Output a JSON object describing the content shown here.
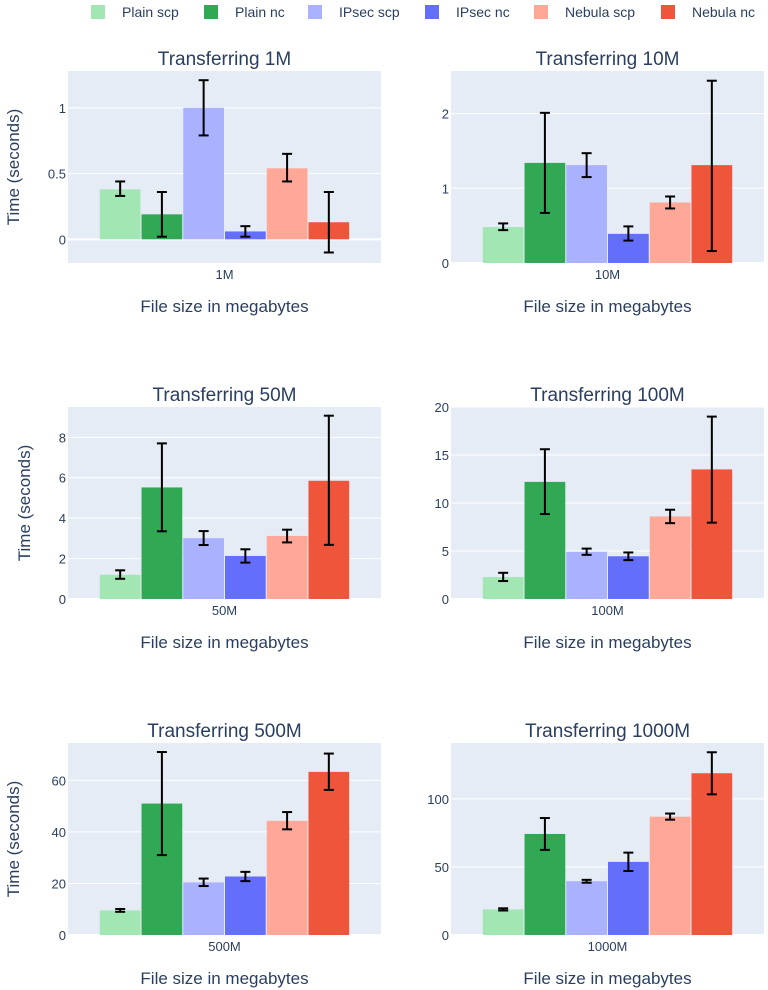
{
  "legend": {
    "entries": [
      {
        "name": "Plain scp",
        "color": "#a1e6b3"
      },
      {
        "name": "Plain nc",
        "color": "#31a854"
      },
      {
        "name": "IPsec scp",
        "color": "#aab1ff"
      },
      {
        "name": "IPsec nc",
        "color": "#636efa"
      },
      {
        "name": "Nebula scp",
        "color": "#ffa898"
      },
      {
        "name": "Nebula nc",
        "color": "#ef553b"
      }
    ]
  },
  "chart_data": [
    {
      "type": "bar",
      "title": "Transferring 1M",
      "categories": [
        "1M"
      ],
      "xlabel": "File size in megabytes",
      "ylabel": "Time (seconds)",
      "ylim": [
        -0.18,
        1.28
      ],
      "yticks": [
        {
          "value": 0,
          "label": "0"
        },
        {
          "value": 0.5,
          "label": "0.5"
        },
        {
          "value": 1,
          "label": "1"
        }
      ],
      "series": [
        {
          "name": "Plain scp",
          "values": [
            0.38
          ],
          "err_low": [
            0.33
          ],
          "err_high": [
            0.44
          ]
        },
        {
          "name": "Plain nc",
          "values": [
            0.19
          ],
          "err_low": [
            0.02
          ],
          "err_high": [
            0.36
          ]
        },
        {
          "name": "IPsec scp",
          "values": [
            1.0
          ],
          "err_low": [
            0.79
          ],
          "err_high": [
            1.21
          ]
        },
        {
          "name": "IPsec nc",
          "values": [
            0.06
          ],
          "err_low": [
            0.02
          ],
          "err_high": [
            0.1
          ]
        },
        {
          "name": "Nebula scp",
          "values": [
            0.54
          ],
          "err_low": [
            0.44
          ],
          "err_high": [
            0.65
          ]
        },
        {
          "name": "Nebula nc",
          "values": [
            0.13
          ],
          "err_low": [
            -0.1
          ],
          "err_high": [
            0.36
          ]
        }
      ]
    },
    {
      "type": "bar",
      "title": "Transferring 10M",
      "categories": [
        "10M"
      ],
      "xlabel": "File size in megabytes",
      "ylabel": "",
      "ylim": [
        0,
        2.57
      ],
      "yticks": [
        {
          "value": 0,
          "label": "0"
        },
        {
          "value": 1,
          "label": "1"
        },
        {
          "value": 2,
          "label": "2"
        }
      ],
      "series": [
        {
          "name": "Plain scp",
          "values": [
            0.48
          ],
          "err_low": [
            0.44
          ],
          "err_high": [
            0.53
          ]
        },
        {
          "name": "Plain nc",
          "values": [
            1.34
          ],
          "err_low": [
            0.67
          ],
          "err_high": [
            2.01
          ]
        },
        {
          "name": "IPsec scp",
          "values": [
            1.31
          ],
          "err_low": [
            1.15
          ],
          "err_high": [
            1.47
          ]
        },
        {
          "name": "IPsec nc",
          "values": [
            0.39
          ],
          "err_low": [
            0.3
          ],
          "err_high": [
            0.49
          ]
        },
        {
          "name": "Nebula scp",
          "values": [
            0.81
          ],
          "err_low": [
            0.73
          ],
          "err_high": [
            0.89
          ]
        },
        {
          "name": "Nebula nc",
          "values": [
            1.31
          ],
          "err_low": [
            0.16
          ],
          "err_high": [
            2.44
          ]
        }
      ]
    },
    {
      "type": "bar",
      "title": "Transferring 50M",
      "categories": [
        "50M"
      ],
      "xlabel": "File size in megabytes",
      "ylabel": "Time (seconds)",
      "ylim": [
        0,
        9.5
      ],
      "yticks": [
        {
          "value": 0,
          "label": "0"
        },
        {
          "value": 2,
          "label": "2"
        },
        {
          "value": 4,
          "label": "4"
        },
        {
          "value": 6,
          "label": "6"
        },
        {
          "value": 8,
          "label": "8"
        }
      ],
      "series": [
        {
          "name": "Plain scp",
          "values": [
            1.2
          ],
          "err_low": [
            1.0
          ],
          "err_high": [
            1.42
          ]
        },
        {
          "name": "Plain nc",
          "values": [
            5.52
          ],
          "err_low": [
            3.35
          ],
          "err_high": [
            7.7
          ]
        },
        {
          "name": "IPsec scp",
          "values": [
            3.01
          ],
          "err_low": [
            2.67
          ],
          "err_high": [
            3.36
          ]
        },
        {
          "name": "IPsec nc",
          "values": [
            2.13
          ],
          "err_low": [
            1.8
          ],
          "err_high": [
            2.46
          ]
        },
        {
          "name": "Nebula scp",
          "values": [
            3.12
          ],
          "err_low": [
            2.8
          ],
          "err_high": [
            3.43
          ]
        },
        {
          "name": "Nebula nc",
          "values": [
            5.85
          ],
          "err_low": [
            2.68
          ],
          "err_high": [
            9.07
          ]
        }
      ]
    },
    {
      "type": "bar",
      "title": "Transferring 100M",
      "categories": [
        "100M"
      ],
      "xlabel": "File size in megabytes",
      "ylabel": "",
      "ylim": [
        0,
        20
      ],
      "yticks": [
        {
          "value": 0,
          "label": "0"
        },
        {
          "value": 5,
          "label": "5"
        },
        {
          "value": 10,
          "label": "10"
        },
        {
          "value": 15,
          "label": "15"
        },
        {
          "value": 20,
          "label": "20"
        }
      ],
      "series": [
        {
          "name": "Plain scp",
          "values": [
            2.28
          ],
          "err_low": [
            1.87
          ],
          "err_high": [
            2.73
          ]
        },
        {
          "name": "Plain nc",
          "values": [
            12.2
          ],
          "err_low": [
            8.85
          ],
          "err_high": [
            15.6
          ]
        },
        {
          "name": "IPsec scp",
          "values": [
            4.92
          ],
          "err_low": [
            4.6
          ],
          "err_high": [
            5.25
          ]
        },
        {
          "name": "IPsec nc",
          "values": [
            4.45
          ],
          "err_low": [
            4.05
          ],
          "err_high": [
            4.85
          ]
        },
        {
          "name": "Nebula scp",
          "values": [
            8.6
          ],
          "err_low": [
            7.9
          ],
          "err_high": [
            9.3
          ]
        },
        {
          "name": "Nebula nc",
          "values": [
            13.5
          ],
          "err_low": [
            7.95
          ],
          "err_high": [
            19.0
          ]
        }
      ]
    },
    {
      "type": "bar",
      "title": "Transferring 500M",
      "categories": [
        "500M"
      ],
      "xlabel": "File size in megabytes",
      "ylabel": "Time (seconds)",
      "ylim": [
        0,
        74.5
      ],
      "yticks": [
        {
          "value": 0,
          "label": "0"
        },
        {
          "value": 20,
          "label": "20"
        },
        {
          "value": 40,
          "label": "40"
        },
        {
          "value": 60,
          "label": "60"
        }
      ],
      "series": [
        {
          "name": "Plain scp",
          "values": [
            9.5
          ],
          "err_low": [
            9.0
          ],
          "err_high": [
            10.1
          ]
        },
        {
          "name": "Plain nc",
          "values": [
            51.0
          ],
          "err_low": [
            31.0
          ],
          "err_high": [
            71.0
          ]
        },
        {
          "name": "IPsec scp",
          "values": [
            20.4
          ],
          "err_low": [
            19.0
          ],
          "err_high": [
            21.9
          ]
        },
        {
          "name": "IPsec nc",
          "values": [
            22.7
          ],
          "err_low": [
            20.9
          ],
          "err_high": [
            24.5
          ]
        },
        {
          "name": "Nebula scp",
          "values": [
            44.3
          ],
          "err_low": [
            41.0
          ],
          "err_high": [
            47.7
          ]
        },
        {
          "name": "Nebula nc",
          "values": [
            63.3
          ],
          "err_low": [
            56.3
          ],
          "err_high": [
            70.4
          ]
        }
      ]
    },
    {
      "type": "bar",
      "title": "Transferring 1000M",
      "categories": [
        "1000M"
      ],
      "xlabel": "File size in megabytes",
      "ylabel": "",
      "ylim": [
        0,
        141
      ],
      "yticks": [
        {
          "value": 0,
          "label": "0"
        },
        {
          "value": 50,
          "label": "50"
        },
        {
          "value": 100,
          "label": "100"
        }
      ],
      "series": [
        {
          "name": "Plain scp",
          "values": [
            18.8
          ],
          "err_low": [
            18.0
          ],
          "err_high": [
            19.6
          ]
        },
        {
          "name": "Plain nc",
          "values": [
            74.2
          ],
          "err_low": [
            62.5
          ],
          "err_high": [
            85.9
          ]
        },
        {
          "name": "IPsec scp",
          "values": [
            39.5
          ],
          "err_low": [
            38.4
          ],
          "err_high": [
            40.5
          ]
        },
        {
          "name": "IPsec nc",
          "values": [
            53.7
          ],
          "err_low": [
            47.0
          ],
          "err_high": [
            60.5
          ]
        },
        {
          "name": "Nebula scp",
          "values": [
            86.9
          ],
          "err_low": [
            84.7
          ],
          "err_high": [
            89.2
          ]
        },
        {
          "name": "Nebula nc",
          "values": [
            118.8
          ],
          "err_low": [
            103.3
          ],
          "err_high": [
            134.2
          ]
        }
      ]
    }
  ]
}
